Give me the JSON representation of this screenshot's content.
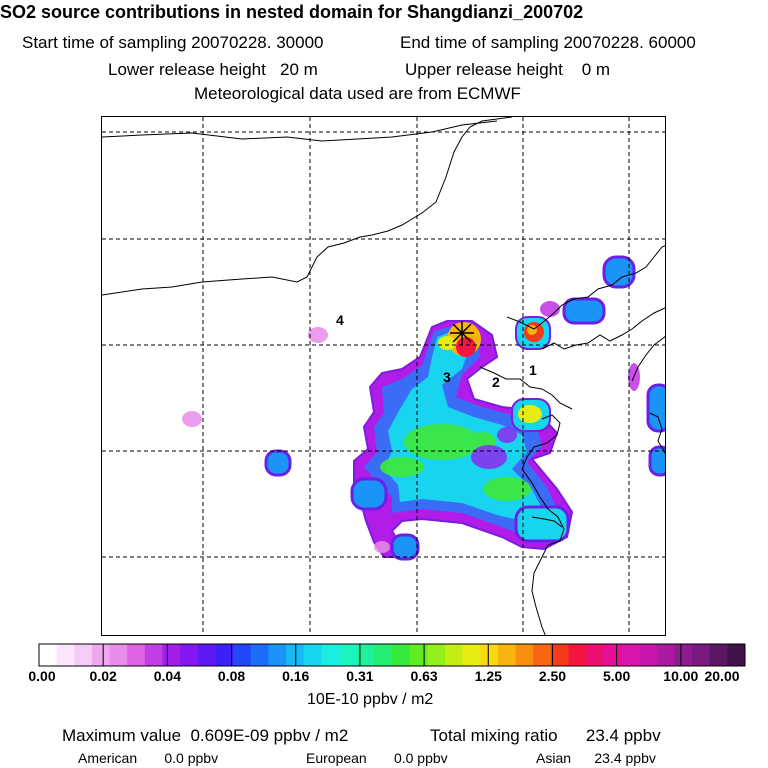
{
  "header": {
    "title": "SO2 source contributions in nested domain for Shangdianzi_200702",
    "start": "Start time of sampling 20070228. 30000",
    "end": "End time of sampling 20070228. 60000",
    "lower": "Lower release height   20 m",
    "upper": "Upper release height    0 m",
    "met": "Meteorological data used are from ECMWF"
  },
  "map": {
    "site_labels": [
      "1",
      "2",
      "3",
      "4"
    ],
    "receptor_marker": "asterisk-icon"
  },
  "colorbar": {
    "tick_labels": [
      "0.00",
      "0.02",
      "0.04",
      "0.08",
      "0.16",
      "0.31",
      "0.63",
      "1.25",
      "2.50",
      "5.00",
      "10.00",
      "20.00"
    ],
    "colors": [
      "#ffffff",
      "#fde6fd",
      "#f7cbf7",
      "#eea8ef",
      "#e88be9",
      "#df62e3",
      "#c33ee6",
      "#a21fe8",
      "#8217f0",
      "#5d18f3",
      "#3d20f5",
      "#2346f7",
      "#1c6ef8",
      "#1a94f7",
      "#18b8f3",
      "#17d5ee",
      "#19eee1",
      "#1bf4c0",
      "#1ff09a",
      "#23ee6f",
      "#35ea3a",
      "#62ea22",
      "#93ee1a",
      "#c2ee15",
      "#e6ec12",
      "#f8d810",
      "#f8b40f",
      "#f88d0e",
      "#f8660f",
      "#f53b1a",
      "#f21640",
      "#ec1070",
      "#e60f96",
      "#dc14ad",
      "#c818ac",
      "#ad1aa1",
      "#911b92",
      "#781a81",
      "#5c1663",
      "#42124a"
    ],
    "units": "10E-10 ppbv / m2"
  },
  "footer": {
    "max_value": "Maximum value  0.609E-09 ppbv / m2",
    "total": "Total mixing ratio      23.4 ppbv",
    "american": "American       0.0 ppbv",
    "european": "European       0.0 ppbv",
    "asian": "Asian      23.4 ppbv"
  },
  "chart_data": {
    "type": "heatmap",
    "title": "SO2 source contributions in nested domain for Shangdianzi_200702",
    "colorbar_label": "10E-10 ppbv / m2",
    "colorbar_ticks": [
      0.0,
      0.02,
      0.04,
      0.08,
      0.16,
      0.31,
      0.63,
      1.25,
      2.5,
      5.0,
      10.0,
      20.0
    ],
    "maximum_value_ppbv_per_m2": 6.09e-10,
    "total_mixing_ratio_ppbv": 23.4,
    "contributions_ppbv": {
      "American": 0.0,
      "European": 0.0,
      "Asian": 23.4
    },
    "grid": true
  }
}
